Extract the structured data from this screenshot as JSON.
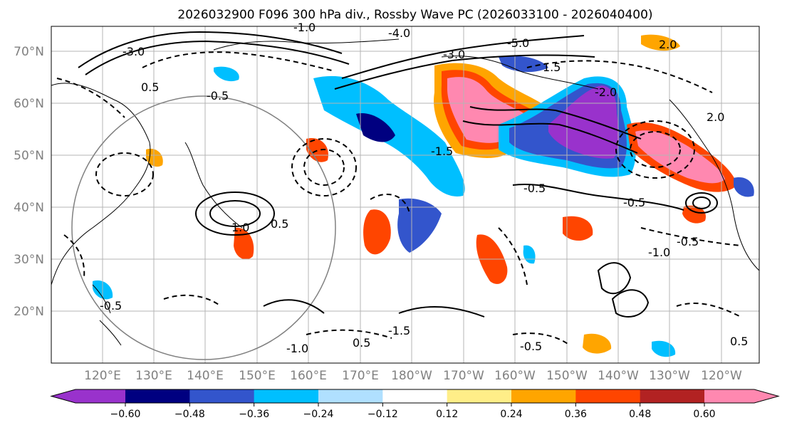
{
  "title": "2026032900 F096 300 hPa div., Rossby Wave PC (2026033100 - 2026040400)",
  "latitude_labels": [
    "70°N",
    "60°N",
    "50°N",
    "40°N",
    "30°N",
    "20°N"
  ],
  "longitude_labels": [
    "120°E",
    "130°E",
    "140°E",
    "150°E",
    "160°E",
    "170°E",
    "180°W",
    "170°W",
    "160°W",
    "150°W",
    "140°W",
    "130°W",
    "120°W"
  ],
  "colorbar": {
    "colors": [
      "#9932cc",
      "#000080",
      "#3355cc",
      "#00bfff",
      "#b0e0ff",
      "#ffffff",
      "#ffee88",
      "#ffa500",
      "#ff4500",
      "#b22222",
      "#ff88b0"
    ],
    "tick_labels": [
      "−0.60",
      "−0.48",
      "−0.36",
      "−0.24",
      "−0.12",
      "0.12",
      "0.24",
      "0.36",
      "0.48",
      "0.60"
    ]
  },
  "contour_labels": [
    "-3.0",
    "-4.0",
    "-5.0",
    "2.0",
    "-0.5",
    "0.5",
    "-1.0",
    "1.0",
    "-1.5",
    "1.5",
    "2.0",
    "-2.0",
    "-3.0",
    "-0.5",
    "-0.5",
    "0.5",
    "-0.5",
    "-1.0",
    "-1.5",
    "-1.0",
    "0.5",
    "-0.5",
    "0.5",
    "-0.5"
  ]
}
